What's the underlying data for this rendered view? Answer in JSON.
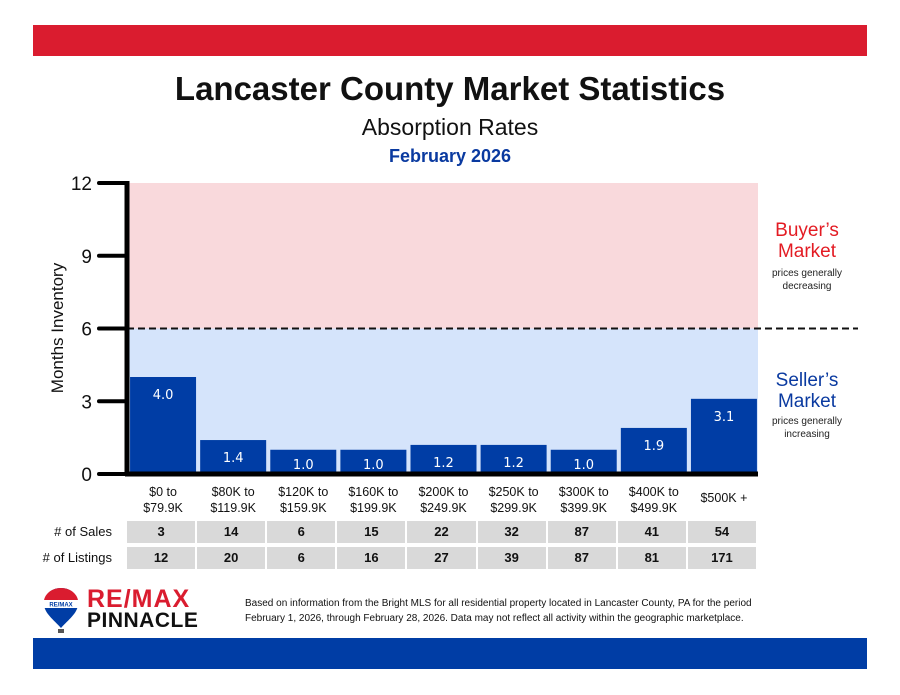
{
  "header": {
    "title": "Lancaster County Market Statistics",
    "subtitle": "Absorption Rates",
    "date": "February 2026"
  },
  "colors": {
    "top_band": "#da1c2f",
    "bottom_band": "#003da5",
    "bar": "#003da5",
    "buyers_zone": "#f9d9dc",
    "sellers_zone": "#d5e4fb",
    "buyers_text": "#e31b23",
    "sellers_text": "#0a3aa0"
  },
  "zones": {
    "buyers": {
      "title_line1": "Buyer’s",
      "title_line2": "Market",
      "desc_line1": "prices generally",
      "desc_line2": "decreasing"
    },
    "sellers": {
      "title_line1": "Seller’s",
      "title_line2": "Market",
      "desc_line1": "prices generally",
      "desc_line2": "increasing"
    }
  },
  "chart_data": {
    "type": "bar",
    "title": "Absorption Rates",
    "xlabel": "",
    "ylabel": "Months Inventory",
    "ylim": [
      0,
      12
    ],
    "yticks": [
      "0",
      "3",
      "6",
      "9",
      "12"
    ],
    "threshold": 6,
    "threshold_style": "dashed",
    "regions": [
      {
        "name": "Buyer's Market",
        "from": 6,
        "to": 12
      },
      {
        "name": "Seller's Market",
        "from": 0,
        "to": 6
      }
    ],
    "categories": [
      [
        "$0 to",
        "$79.9K"
      ],
      [
        "$80K to",
        "$119.9K"
      ],
      [
        "$120K to",
        "$159.9K"
      ],
      [
        "$160K to",
        "$199.9K"
      ],
      [
        "$200K to",
        "$249.9K"
      ],
      [
        "$250K to",
        "$299.9K"
      ],
      [
        "$300K to",
        "$399.9K"
      ],
      [
        "$400K to",
        "$499.9K"
      ],
      [
        "$500K +",
        ""
      ]
    ],
    "values": [
      4.0,
      1.4,
      1.0,
      1.0,
      1.2,
      1.2,
      1.0,
      1.9,
      3.1
    ],
    "value_labels": [
      "4.0",
      "1.4",
      "1.0",
      "1.0",
      "1.2",
      "1.2",
      "1.0",
      "1.9",
      "3.1"
    ],
    "grid": false,
    "legend": "none"
  },
  "table": {
    "rows": [
      {
        "label": "# of Sales",
        "values": [
          "3",
          "14",
          "6",
          "15",
          "22",
          "32",
          "87",
          "41",
          "54"
        ]
      },
      {
        "label": "# of Listings",
        "values": [
          "12",
          "20",
          "6",
          "16",
          "27",
          "39",
          "87",
          "81",
          "171"
        ]
      }
    ]
  },
  "footer": {
    "brand_line1": "RE/MAX",
    "brand_line2": "PINNACLE",
    "balloon_text": "RE/MAX",
    "disclaimer_line1": "Based on information from the Bright MLS for all residential property located in Lancaster County, PA for the period",
    "disclaimer_line2": "February 1, 2026, through February 28, 2026.  Data may not reflect all activity within the geographic marketplace."
  }
}
